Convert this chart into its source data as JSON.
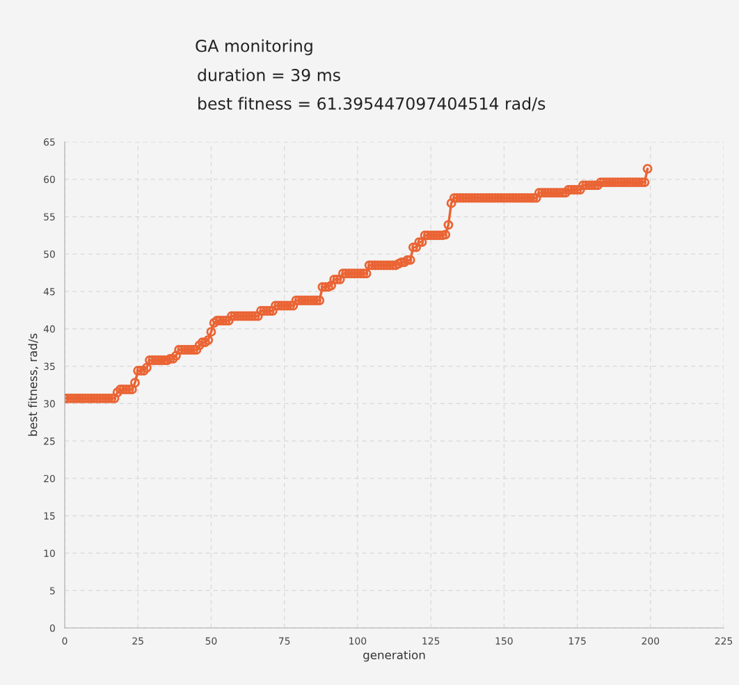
{
  "chart_data": {
    "type": "line",
    "title": "GA monitoring",
    "annotations": [
      "duration = 39 ms",
      "best fitness = 61.395447097404514 rad/s"
    ],
    "xlabel": "generation",
    "ylabel": "best fitness, rad/s",
    "x": [
      0,
      1,
      2,
      3,
      4,
      5,
      6,
      7,
      8,
      9,
      10,
      11,
      12,
      13,
      14,
      15,
      16,
      17,
      18,
      19,
      20,
      21,
      22,
      23,
      24,
      25,
      26,
      27,
      28,
      29,
      30,
      31,
      32,
      33,
      34,
      35,
      36,
      37,
      38,
      39,
      40,
      41,
      42,
      43,
      44,
      45,
      46,
      47,
      48,
      49,
      50,
      51,
      52,
      53,
      54,
      55,
      56,
      57,
      58,
      59,
      60,
      61,
      62,
      63,
      64,
      65,
      66,
      67,
      68,
      69,
      70,
      71,
      72,
      73,
      74,
      75,
      76,
      77,
      78,
      79,
      80,
      81,
      82,
      83,
      84,
      85,
      86,
      87,
      88,
      89,
      90,
      91,
      92,
      93,
      94,
      95,
      96,
      97,
      98,
      99,
      100,
      101,
      102,
      103,
      104,
      105,
      106,
      107,
      108,
      109,
      110,
      111,
      112,
      113,
      114,
      115,
      116,
      117,
      118,
      119,
      120,
      121,
      122,
      123,
      124,
      125,
      126,
      127,
      128,
      129,
      130,
      131,
      132,
      133,
      134,
      135,
      136,
      137,
      138,
      139,
      140,
      141,
      142,
      143,
      144,
      145,
      146,
      147,
      148,
      149,
      150,
      151,
      152,
      153,
      154,
      155,
      156,
      157,
      158,
      159,
      160,
      161,
      162,
      163,
      164,
      165,
      166,
      167,
      168,
      169,
      170,
      171,
      172,
      173,
      174,
      175,
      176,
      177,
      178,
      179,
      180,
      181,
      182,
      183,
      184,
      185,
      186,
      187,
      188,
      189,
      190,
      191,
      192,
      193,
      194,
      195,
      196,
      197,
      198,
      199
    ],
    "series": [
      {
        "color": "#ea6434",
        "values": [
          30.7,
          30.7,
          30.7,
          30.7,
          30.7,
          30.7,
          30.7,
          30.7,
          30.7,
          30.7,
          30.7,
          30.7,
          30.7,
          30.7,
          30.7,
          30.7,
          30.7,
          30.7,
          31.5,
          31.9,
          31.9,
          31.9,
          31.9,
          31.9,
          32.8,
          34.4,
          34.4,
          34.4,
          34.8,
          35.8,
          35.8,
          35.8,
          35.8,
          35.8,
          35.8,
          35.8,
          36.0,
          36.0,
          36.4,
          37.2,
          37.2,
          37.2,
          37.2,
          37.2,
          37.2,
          37.2,
          37.8,
          38.2,
          38.2,
          38.5,
          39.6,
          40.8,
          41.1,
          41.1,
          41.1,
          41.1,
          41.1,
          41.7,
          41.7,
          41.7,
          41.7,
          41.7,
          41.7,
          41.7,
          41.7,
          41.7,
          41.7,
          42.4,
          42.4,
          42.4,
          42.4,
          42.4,
          43.1,
          43.1,
          43.1,
          43.1,
          43.1,
          43.1,
          43.1,
          43.8,
          43.8,
          43.8,
          43.8,
          43.8,
          43.8,
          43.8,
          43.8,
          43.8,
          45.6,
          45.6,
          45.6,
          45.8,
          46.6,
          46.6,
          46.6,
          47.4,
          47.4,
          47.4,
          47.4,
          47.4,
          47.4,
          47.4,
          47.4,
          47.4,
          48.5,
          48.5,
          48.5,
          48.5,
          48.5,
          48.5,
          48.5,
          48.5,
          48.5,
          48.5,
          48.7,
          48.9,
          48.9,
          49.2,
          49.2,
          50.9,
          50.9,
          51.6,
          51.6,
          52.5,
          52.5,
          52.5,
          52.5,
          52.5,
          52.5,
          52.5,
          52.6,
          53.9,
          56.8,
          57.5,
          57.5,
          57.5,
          57.5,
          57.5,
          57.5,
          57.5,
          57.5,
          57.5,
          57.5,
          57.5,
          57.5,
          57.5,
          57.5,
          57.5,
          57.5,
          57.5,
          57.5,
          57.5,
          57.5,
          57.5,
          57.5,
          57.5,
          57.5,
          57.5,
          57.5,
          57.5,
          57.5,
          57.5,
          58.2,
          58.2,
          58.2,
          58.2,
          58.2,
          58.2,
          58.2,
          58.2,
          58.2,
          58.2,
          58.6,
          58.6,
          58.6,
          58.6,
          58.6,
          59.2,
          59.2,
          59.2,
          59.2,
          59.2,
          59.2,
          59.6,
          59.6,
          59.6,
          59.6,
          59.6,
          59.6,
          59.6,
          59.6,
          59.6,
          59.6,
          59.6,
          59.6,
          59.6,
          59.6,
          59.6,
          59.6,
          61.4
        ]
      }
    ],
    "xlim": [
      0,
      225
    ],
    "xticks": [
      0,
      25,
      50,
      75,
      100,
      125,
      150,
      175,
      200,
      225
    ],
    "ylim": [
      0,
      65
    ],
    "yticks": [
      0,
      5,
      10,
      15,
      20,
      25,
      30,
      35,
      40,
      45,
      50,
      55,
      60,
      65
    ],
    "grid": true,
    "marker": "circle",
    "line_style": "solid"
  }
}
